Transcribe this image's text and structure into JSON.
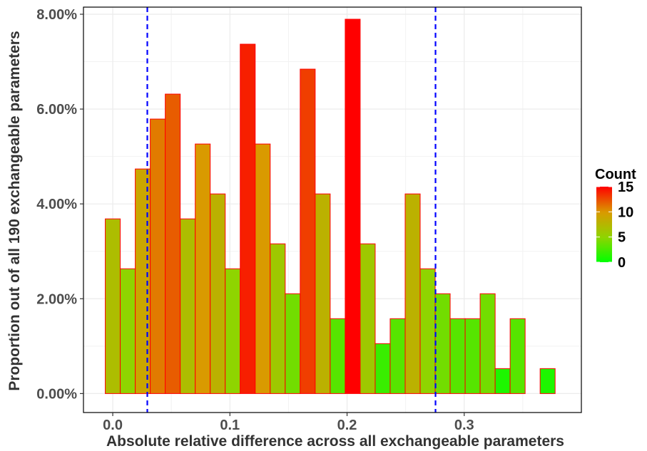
{
  "chart_data": {
    "type": "bar",
    "xlabel": "Absolute relative difference across all exchangeable parameters",
    "ylabel": "Proportion out of all 190 exchangeable parameters",
    "xlim": [
      -0.025,
      0.4
    ],
    "ylim": [
      -0.004,
      0.0815
    ],
    "x_ticks": [
      0.0,
      0.1,
      0.2,
      0.3
    ],
    "x_tick_labels": [
      "0.0",
      "0.1",
      "0.2",
      "0.3"
    ],
    "y_ticks": [
      0.0,
      0.02,
      0.04,
      0.06,
      0.08
    ],
    "y_tick_labels": [
      "0.00%",
      "2.00%",
      "4.00%",
      "6.00%",
      "8.00%"
    ],
    "bin_width": 0.0128,
    "first_bin_center": 0.0,
    "counts": [
      7,
      5,
      9,
      11,
      12,
      7,
      10,
      8,
      5,
      14,
      10,
      6,
      4,
      13,
      8,
      3,
      15,
      6,
      2,
      3,
      8,
      5,
      4,
      3,
      3,
      4,
      1,
      3,
      0,
      1
    ],
    "total": 190,
    "grid": true,
    "bar_outline_color": "#FF0000",
    "fill_scale": {
      "low": "#00FF00",
      "high": "#FF0000",
      "limits": [
        0,
        15
      ]
    },
    "vlines": [
      {
        "x": 0.0295,
        "color": "#0000FF",
        "style": "dashed"
      },
      {
        "x": 0.2755,
        "color": "#0000FF",
        "style": "dashed"
      }
    ],
    "legend": {
      "title": "Count",
      "placement": "right",
      "labels": [
        "15",
        "10",
        "5",
        "0"
      ],
      "values": [
        15,
        10,
        5,
        0
      ]
    }
  }
}
